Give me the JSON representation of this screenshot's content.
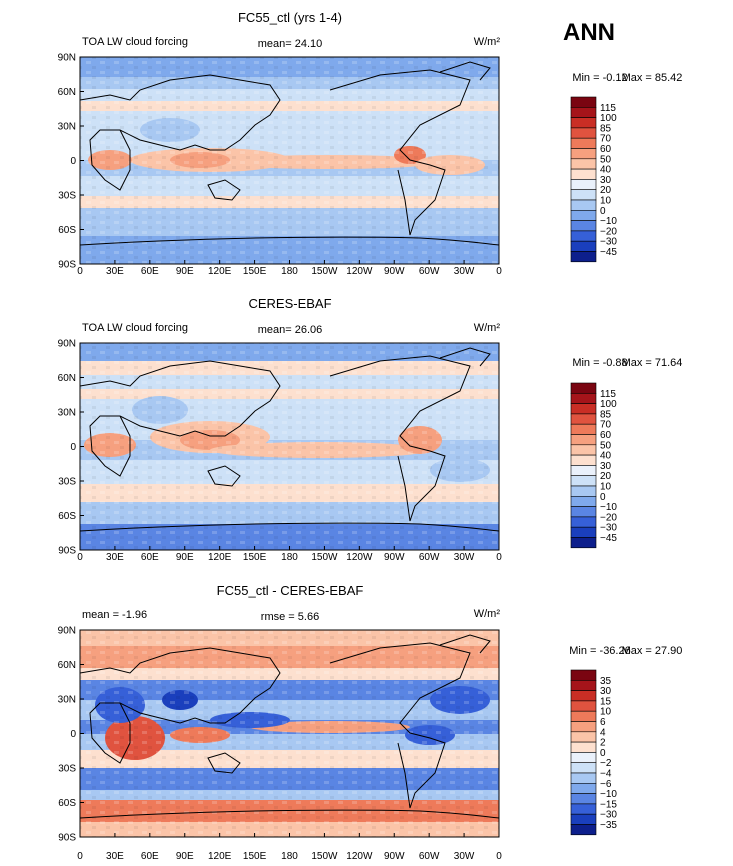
{
  "season": "ANN",
  "colors": {
    "pos_ramp": [
      "#fde0cf",
      "#fbc4a8",
      "#f6a07f",
      "#ee7a5a",
      "#e0533f",
      "#c92e25",
      "#a5141a",
      "#7a0511"
    ],
    "neg_ramp": [
      "#eaf1fb",
      "#cde1f7",
      "#a8c8f2",
      "#7fa9ec",
      "#5a85e3",
      "#3660d8",
      "#1a3fbd",
      "#0d1f8c",
      "#05105e"
    ],
    "land": "#000000"
  },
  "axes": {
    "x_ticks": [
      "0",
      "30E",
      "60E",
      "90E",
      "120E",
      "150E",
      "180",
      "150W",
      "120W",
      "90W",
      "60W",
      "30W",
      "0"
    ],
    "y_ticks": [
      "90N",
      "60N",
      "30N",
      "0",
      "30S",
      "60S",
      "90S"
    ]
  },
  "panels": [
    {
      "title": "FC55_ctl (yrs 1-4)",
      "left_label": "TOA LW cloud forcing",
      "center_label": "mean=  24.10",
      "units": "W/m²",
      "min_label": "Min =  -0.12",
      "max_label": "Max =  85.42",
      "levels": [
        "115",
        "100",
        "85",
        "70",
        "60",
        "50",
        "40",
        "30",
        "20",
        "10",
        "0",
        "−10",
        "−20",
        "−30",
        "−45"
      ],
      "colors": [
        "#7a0511",
        "#a5141a",
        "#c92e25",
        "#e0533f",
        "#ee7a5a",
        "#f6a07f",
        "#fbc4a8",
        "#fde0cf",
        "#eaf1fb",
        "#cde1f7",
        "#a8c8f2",
        "#7fa9ec",
        "#5a85e3",
        "#3660d8",
        "#1a3fbd",
        "#0d1f8c"
      ]
    },
    {
      "title": "CERES-EBAF",
      "left_label": "TOA LW cloud forcing",
      "center_label": "mean=  26.06",
      "units": "W/m²",
      "min_label": "Min =  -0.88",
      "max_label": "Max =  71.64",
      "levels": [
        "115",
        "100",
        "85",
        "70",
        "60",
        "50",
        "40",
        "30",
        "20",
        "10",
        "0",
        "−10",
        "−20",
        "−30",
        "−45"
      ],
      "colors": [
        "#7a0511",
        "#a5141a",
        "#c92e25",
        "#e0533f",
        "#ee7a5a",
        "#f6a07f",
        "#fbc4a8",
        "#fde0cf",
        "#eaf1fb",
        "#cde1f7",
        "#a8c8f2",
        "#7fa9ec",
        "#5a85e3",
        "#3660d8",
        "#1a3fbd",
        "#0d1f8c"
      ]
    },
    {
      "title": "FC55_ctl - CERES-EBAF",
      "left_label": "mean =   -1.96",
      "center_label": "rmse =   5.66",
      "units": "W/m²",
      "min_label": "Min = -36.26",
      "max_label": "Max =  27.90",
      "levels": [
        "35",
        "30",
        "15",
        "10",
        "6",
        "4",
        "2",
        "0",
        "−2",
        "−4",
        "−6",
        "−10",
        "−15",
        "−30",
        "−35"
      ],
      "colors": [
        "#7a0511",
        "#a5141a",
        "#c92e25",
        "#e0533f",
        "#ee7a5a",
        "#f6a07f",
        "#fbc4a8",
        "#fde0cf",
        "#eaf1fb",
        "#cde1f7",
        "#a8c8f2",
        "#7fa9ec",
        "#5a85e3",
        "#3660d8",
        "#1a3fbd",
        "#0d1f8c"
      ]
    }
  ]
}
